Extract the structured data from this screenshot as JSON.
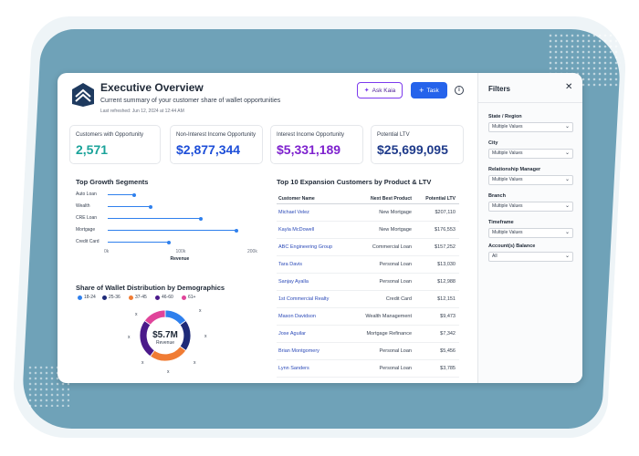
{
  "header": {
    "title": "Executive Overview",
    "subtitle": "Current summary of your customer share of wallet opportunities",
    "refreshed": "Last refreshed: Jun 12, 2024 at 12:44 AM",
    "ask_kaia_label": "Ask Kaia",
    "task_label": "Task"
  },
  "kpis": [
    {
      "label": "Customers with Opportunity",
      "value": "2,571",
      "color": "#1aa39a"
    },
    {
      "label": "Non-Interest Income Opportunity",
      "value": "$2,877,344",
      "color": "#1d4ed8"
    },
    {
      "label": "Interest Income Opportunity",
      "value": "$5,331,189",
      "color": "#7e22ce"
    },
    {
      "label": "Potential LTV",
      "value": "$25,699,095",
      "color": "#1e3a8a"
    }
  ],
  "growth": {
    "title": "Top Growth Segments",
    "xlabel": "Revenue",
    "ticks": [
      "0k",
      "100k",
      "200k"
    ]
  },
  "share": {
    "title": "Share of Wallet Distribution by Demographics",
    "center_value": "$5.7M",
    "center_label": "Revenue",
    "x_marker": "x"
  },
  "table": {
    "title": "Top 10 Expansion Customers by Product & LTV",
    "headers": [
      "Customer Name",
      "Next Best Product",
      "Potential LTV"
    ],
    "rows": [
      [
        "Michael Velez",
        "New Mortgage",
        "$207,110"
      ],
      [
        "Kayla McDowell",
        "New Mortgage",
        "$176,553"
      ],
      [
        "ABC Engineering Group",
        "Commercial Loan",
        "$157,252"
      ],
      [
        "Tara Davis",
        "Personal Loan",
        "$13,030"
      ],
      [
        "Sanjay Ayalla",
        "Personal Loan",
        "$12,988"
      ],
      [
        "1st Commercial Realty",
        "Credit Card",
        "$12,151"
      ],
      [
        "Mason Davidson",
        "Wealth Management",
        "$9,473"
      ],
      [
        "Jose Aguilar",
        "Mortgage Refinance",
        "$7,342"
      ],
      [
        "Brian Montgomery",
        "Personal Loan",
        "$5,456"
      ],
      [
        "Lynn Sanders",
        "Personal Loan",
        "$3,785"
      ]
    ]
  },
  "filters": {
    "title": "Filters",
    "items": [
      {
        "label": "State / Region",
        "value": "Multiple Values"
      },
      {
        "label": "City",
        "value": "Multiple Values"
      },
      {
        "label": "Relationship Manager",
        "value": "Multiple Values"
      },
      {
        "label": "Branch",
        "value": "Multiple Values"
      },
      {
        "label": "Timeframe",
        "value": "Multiple Values"
      },
      {
        "label": "Account(s) Balance",
        "value": "All"
      }
    ]
  },
  "chart_data": [
    {
      "type": "scatter",
      "title": "Top Growth Segments",
      "xlabel": "Revenue",
      "ylabel": "",
      "categories": [
        "Auto Loan",
        "Wealth",
        "CRE Loan",
        "Mortgage",
        "Credit Card"
      ],
      "values": [
        37,
        60,
        130,
        180,
        85
      ],
      "xlim": [
        0,
        200
      ],
      "tick_labels": [
        "0k",
        "100k",
        "200k"
      ],
      "color": "#2f80ed",
      "grid": false
    },
    {
      "type": "pie",
      "title": "Share of Wallet Distribution by Demographics",
      "categories": [
        "18-24",
        "25-36",
        "37-45",
        "46-60",
        "61+"
      ],
      "values": [
        15,
        20,
        25,
        25,
        15
      ],
      "colors": [
        "#2f80ed",
        "#1e2a78",
        "#f07c34",
        "#4b1a8a",
        "#e0449a"
      ],
      "center_value": "$5.7M",
      "center_label": "Revenue",
      "legend": "top"
    }
  ]
}
